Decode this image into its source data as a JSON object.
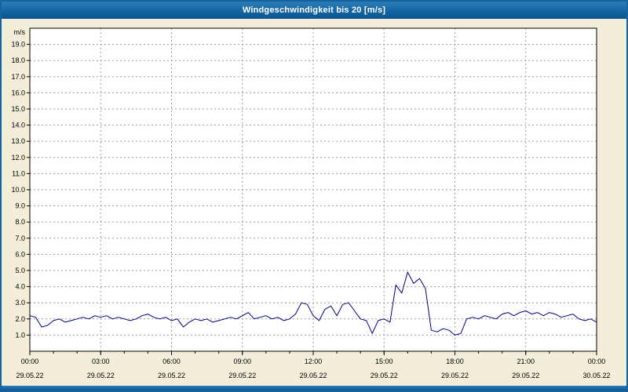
{
  "window": {
    "title": "Windgeschwindigkeit bis 20 [m/s]"
  },
  "chart_data": {
    "type": "line",
    "title": "Windgeschwindigkeit bis 20 [m/s]",
    "ylabel": "m/s",
    "ylim": [
      0,
      20
    ],
    "xlim_hours": [
      0,
      24
    ],
    "grid": {
      "color": "#9a9a9a",
      "dash": "2,3",
      "on": true
    },
    "plot_bg": "#ffffff",
    "axis_color": "#000000",
    "y_tick_labels": [
      "1.0",
      "2.0",
      "3.0",
      "4.0",
      "5.0",
      "6.0",
      "7.0",
      "8.0",
      "9.0",
      "10.0",
      "11.0",
      "12.0",
      "13.0",
      "14.0",
      "15.0",
      "16.0",
      "17.0",
      "18.0",
      "19.0"
    ],
    "x_ticks": [
      {
        "hour": 0,
        "time": "00:00",
        "date": "29.05.22"
      },
      {
        "hour": 3,
        "time": "03:00",
        "date": "29.05.22"
      },
      {
        "hour": 6,
        "time": "06:00",
        "date": "29.05.22"
      },
      {
        "hour": 9,
        "time": "09:00",
        "date": "29.05.22"
      },
      {
        "hour": 12,
        "time": "12:00",
        "date": "29.05.22"
      },
      {
        "hour": 15,
        "time": "15:00",
        "date": "29.05.22"
      },
      {
        "hour": 18,
        "time": "18:00",
        "date": "29.05.22"
      },
      {
        "hour": 21,
        "time": "21:00",
        "date": "29.05.22"
      },
      {
        "hour": 24,
        "time": "00:00",
        "date": "30.05.22"
      }
    ],
    "minor_x_tick_every_hours": 1,
    "series": [
      {
        "name": "Windgeschwindigkeit",
        "color": "#000080",
        "x_start_hour": 0,
        "x_step_hours": 0.25,
        "values": [
          2.2,
          2.1,
          1.5,
          1.6,
          1.9,
          2.0,
          1.8,
          1.9,
          2.0,
          2.1,
          2.0,
          2.2,
          2.1,
          2.2,
          2.0,
          2.1,
          2.0,
          1.9,
          2.0,
          2.2,
          2.3,
          2.1,
          2.0,
          2.1,
          1.9,
          2.0,
          1.5,
          1.8,
          2.0,
          1.9,
          2.0,
          1.8,
          1.9,
          2.0,
          2.1,
          2.0,
          2.2,
          2.4,
          2.0,
          2.1,
          2.2,
          2.0,
          2.1,
          1.9,
          2.0,
          2.3,
          3.0,
          2.9,
          2.2,
          1.9,
          2.6,
          2.8,
          2.2,
          2.9,
          3.0,
          2.5,
          2.0,
          1.9,
          1.1,
          1.9,
          2.0,
          1.8,
          4.1,
          3.6,
          4.9,
          4.2,
          4.5,
          3.9,
          1.3,
          1.2,
          1.4,
          1.3,
          1.0,
          1.1,
          2.0,
          2.1,
          2.0,
          2.2,
          2.1,
          2.0,
          2.3,
          2.4,
          2.2,
          2.4,
          2.5,
          2.3,
          2.4,
          2.2,
          2.4,
          2.3,
          2.1,
          2.2,
          2.3,
          2.0,
          1.9,
          2.0,
          1.8
        ]
      }
    ]
  }
}
